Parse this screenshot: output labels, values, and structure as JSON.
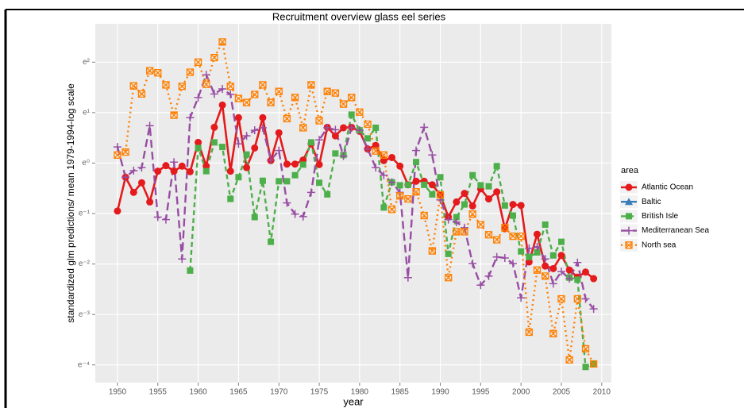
{
  "chart_data": {
    "type": "line",
    "title": "Recruitment overview glass eel series",
    "x_label": "year",
    "y_label": "standardized glm predictions/ mean 1979-1994-log scale",
    "legend_title": "area",
    "x": [
      1950,
      1951,
      1952,
      1953,
      1954,
      1955,
      1956,
      1957,
      1958,
      1959,
      1960,
      1961,
      1962,
      1963,
      1964,
      1965,
      1966,
      1967,
      1968,
      1969,
      1970,
      1971,
      1972,
      1973,
      1974,
      1975,
      1976,
      1977,
      1978,
      1979,
      1980,
      1981,
      1982,
      1983,
      1984,
      1985,
      1986,
      1987,
      1988,
      1989,
      1990,
      1991,
      1992,
      1993,
      1994,
      1995,
      1996,
      1997,
      1998,
      1999,
      2000,
      2001,
      2002,
      2003,
      2004,
      2005,
      2006,
      2007,
      2008,
      2009
    ],
    "xlim": [
      1947.25,
      2011.2
    ],
    "xticks": [
      1950,
      1955,
      1960,
      1965,
      1970,
      1975,
      1980,
      1985,
      1990,
      1995,
      2000,
      2005,
      2010
    ],
    "ylim": [
      -4.35,
      2.76
    ],
    "yticks": [
      {
        "value": -4,
        "label": "e⁻⁴"
      },
      {
        "value": -3,
        "label": "e⁻³"
      },
      {
        "value": -2,
        "label": "e⁻²"
      },
      {
        "value": -1,
        "label": "e⁻¹"
      },
      {
        "value": 0,
        "label": "e⁰"
      },
      {
        "value": 1,
        "label": "e¹"
      },
      {
        "value": 2,
        "label": "e²"
      }
    ],
    "grid": true,
    "legend": "right",
    "series": [
      {
        "name": "Atlantic Ocean",
        "color": "#e41a1c",
        "values": [
          -0.95,
          -0.28,
          -0.58,
          -0.39,
          -0.77,
          -0.16,
          -0.05,
          -0.16,
          -0.06,
          -0.17,
          0.41,
          -0.06,
          0.71,
          1.15,
          -0.16,
          0.9,
          -0.09,
          0.3,
          0.9,
          0.05,
          0.6,
          -0.02,
          -0.02,
          0.06,
          0.38,
          -0.03,
          0.71,
          0.54,
          0.7,
          0.71,
          0.63,
          0.28,
          0.35,
          0.05,
          0.11,
          -0.06,
          -0.43,
          -0.36,
          -0.36,
          -0.43,
          -0.63,
          -1.07,
          -0.77,
          -0.6,
          -0.85,
          -0.51,
          -0.71,
          -0.57,
          -1.3,
          -0.82,
          -0.84,
          -1.96,
          -1.41,
          -2.04,
          -2.09,
          -1.83,
          -2.12,
          -2.26,
          -2.16,
          -2.29
        ]
      },
      {
        "name": "Baltic",
        "color": "#377eb8",
        "values": [
          null,
          null,
          null,
          null,
          null,
          null,
          null,
          null,
          null,
          null,
          null,
          null,
          null,
          null,
          null,
          null,
          null,
          null,
          null,
          null,
          null,
          null,
          null,
          null,
          null,
          null,
          null,
          null,
          null,
          null,
          null,
          null,
          null,
          null,
          null,
          null,
          null,
          null,
          null,
          null,
          null,
          null,
          null,
          null,
          null,
          null,
          null,
          null,
          null,
          null,
          null,
          null,
          null,
          null,
          null,
          null,
          null,
          null,
          null,
          -3.98
        ]
      },
      {
        "name": "British Isle",
        "color": "#4daf4a",
        "values": [
          null,
          null,
          null,
          null,
          null,
          null,
          null,
          null,
          null,
          -2.13,
          0.3,
          -0.16,
          0.41,
          0.32,
          -0.71,
          -0.28,
          0.17,
          -1.07,
          -0.35,
          -1.56,
          -0.36,
          -0.36,
          -0.24,
          -0.03,
          0.41,
          -0.39,
          -0.62,
          0.19,
          0.16,
          0.96,
          0.65,
          0.49,
          0.7,
          -0.88,
          -0.38,
          -0.44,
          -0.43,
          0.02,
          -0.43,
          -0.62,
          -0.28,
          -1.8,
          -1.07,
          -0.82,
          -0.24,
          -0.44,
          -0.46,
          -0.06,
          -0.84,
          -1.04,
          -1.75,
          -1.86,
          -1.77,
          -1.22,
          -1.83,
          -1.56,
          -2.27,
          -2.31,
          -4.04,
          -3.98
        ]
      },
      {
        "name": "Mediterranean Sea",
        "color": "#984ea3",
        "values": [
          0.32,
          -0.28,
          -0.15,
          -0.09,
          0.74,
          -1.07,
          -1.12,
          0.02,
          -1.9,
          0.9,
          1.3,
          1.75,
          1.37,
          1.47,
          1.36,
          0.38,
          0.54,
          0.65,
          0.7,
          0.06,
          0.25,
          -0.79,
          -1.01,
          -1.06,
          -0.58,
          0.46,
          0.7,
          0.66,
          0.14,
          0.7,
          0.65,
          0.28,
          -0.09,
          -0.24,
          -0.38,
          -0.58,
          -2.27,
          0.25,
          0.71,
          0.16,
          -0.73,
          -1.12,
          -1.17,
          -1.28,
          -1.99,
          -2.42,
          -2.24,
          -1.86,
          -1.88,
          -1.99,
          -2.67,
          -1.69,
          -1.66,
          -1.9,
          -2.39,
          -2.15,
          -2.29,
          -1.97,
          -2.69,
          -2.89
        ]
      },
      {
        "name": "North sea",
        "color": "#ff7f00",
        "values": [
          0.16,
          0.22,
          1.53,
          1.37,
          1.83,
          1.79,
          1.55,
          0.95,
          1.52,
          1.8,
          2.0,
          1.56,
          2.09,
          2.4,
          1.52,
          1.28,
          1.2,
          1.36,
          1.55,
          1.2,
          1.42,
          0.88,
          1.3,
          0.7,
          1.55,
          0.84,
          1.42,
          1.39,
          1.17,
          1.3,
          1.01,
          0.77,
          0.24,
          0.16,
          -0.92,
          -0.65,
          -0.71,
          -0.57,
          -1.04,
          -1.74,
          -0.63,
          -2.27,
          -1.36,
          -1.36,
          -1.01,
          -1.22,
          -1.42,
          -1.52,
          -1.28,
          -1.45,
          -1.45,
          -3.35,
          -2.12,
          -2.24,
          -3.38,
          -2.69,
          -3.9,
          -2.69,
          -3.68,
          -3.98
        ]
      }
    ]
  }
}
